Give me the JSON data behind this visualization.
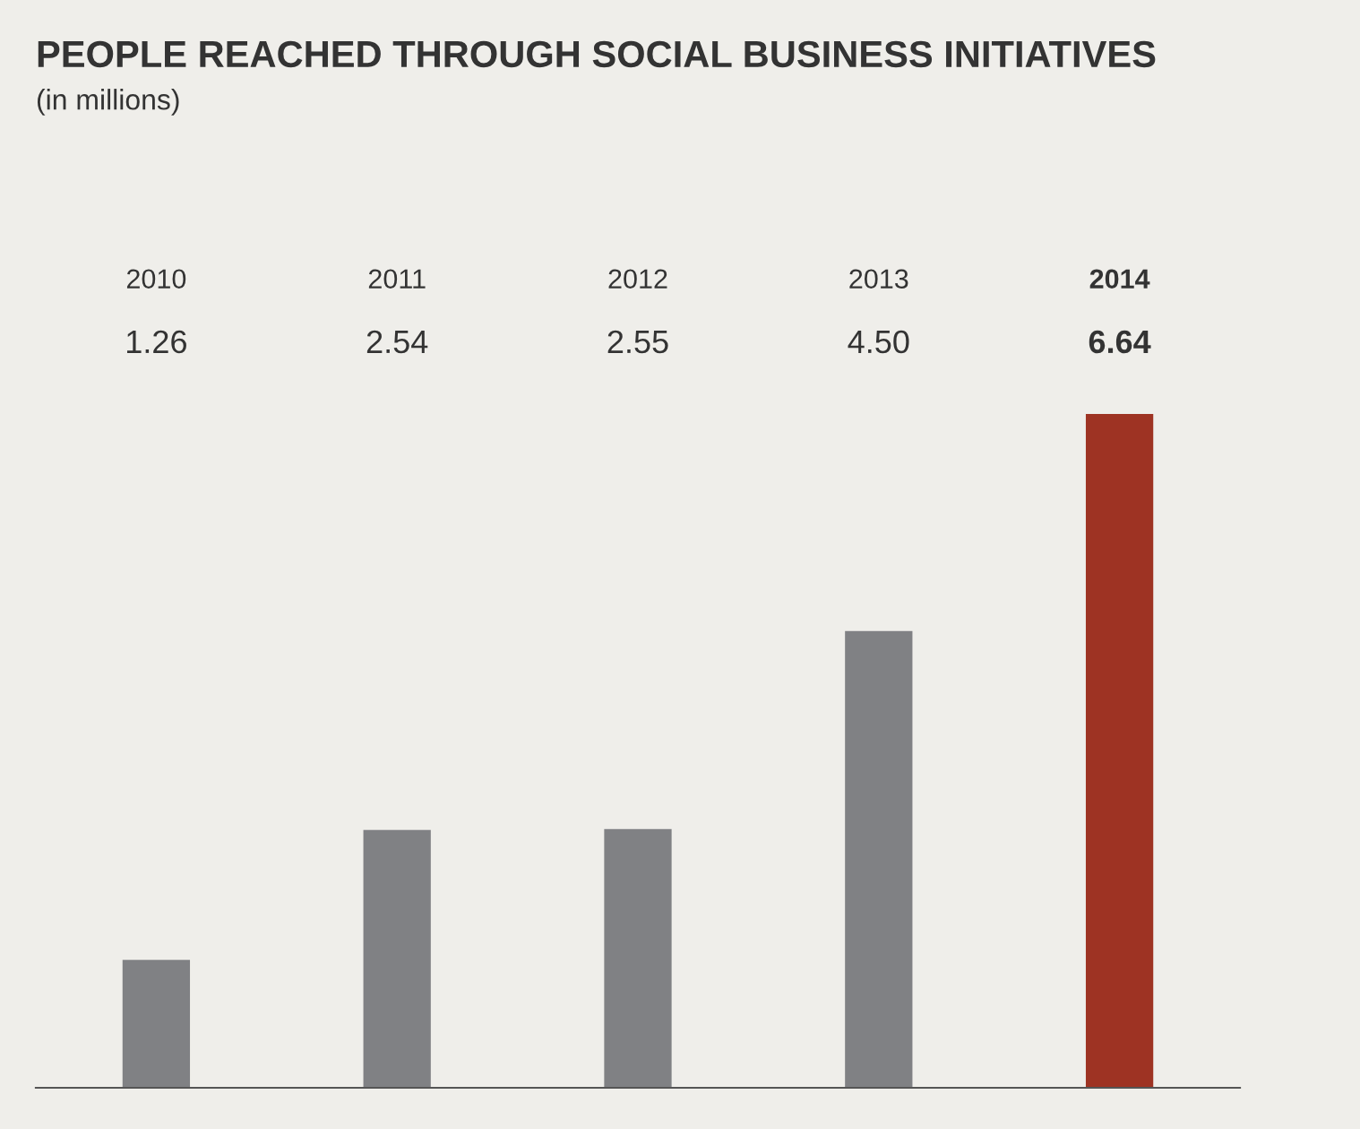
{
  "chart_data": {
    "type": "bar",
    "title": "PEOPLE REACHED THROUGH SOCIAL BUSINESS INITIATIVES",
    "subtitle": "(in millions)",
    "categories": [
      "2010",
      "2011",
      "2012",
      "2013",
      "2014"
    ],
    "values": [
      1.26,
      2.54,
      2.55,
      4.5,
      6.64
    ],
    "value_labels": [
      "1.26",
      "2.54",
      "2.55",
      "4.50",
      "6.64"
    ],
    "colors": [
      "#808184",
      "#808184",
      "#808184",
      "#808184",
      "#9e3323"
    ]
  }
}
